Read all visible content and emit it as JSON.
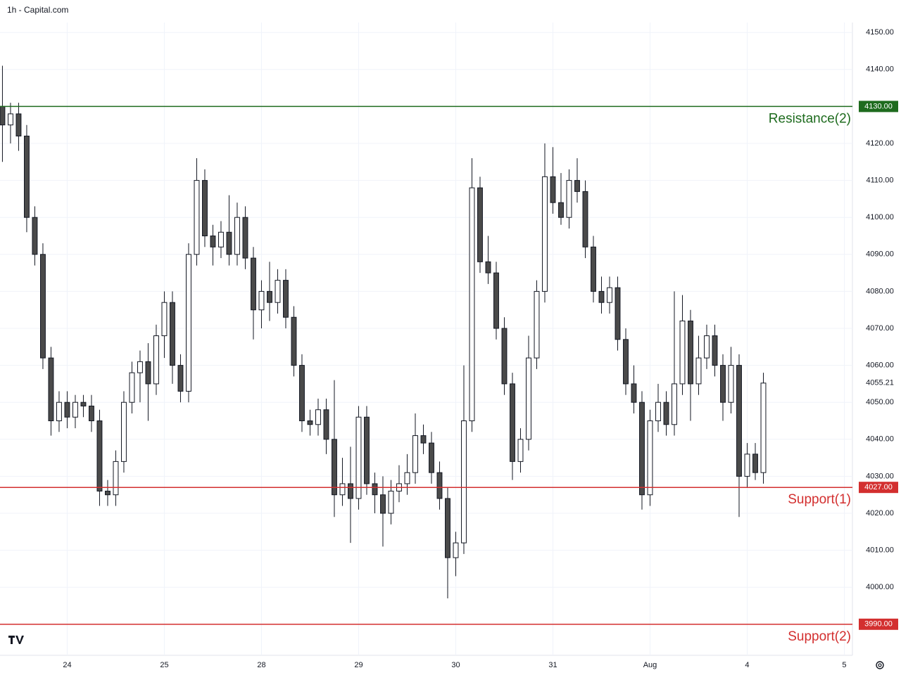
{
  "chart_data": {
    "type": "candlestick",
    "title": "1h - Capital.com",
    "open": [
      4130,
      4125,
      4128,
      4122,
      4100,
      4090,
      4062,
      4045,
      4050,
      4046,
      4050,
      4049,
      4045,
      4026,
      4025,
      4034,
      4050,
      4058,
      4061,
      4055,
      4068,
      4077,
      4060,
      4053,
      4090,
      4110,
      4095,
      4092,
      4096,
      4090,
      4100,
      4089,
      4075,
      4080,
      4077,
      4083,
      4073,
      4060,
      4045,
      4044,
      4048,
      4040,
      4025,
      4028,
      4024,
      4046,
      4028,
      4025,
      4020,
      4026,
      4028,
      4031,
      4041,
      4039,
      4031,
      4024,
      4008,
      4012,
      4045,
      4108,
      4088,
      4085,
      4070,
      4055,
      4034,
      4040,
      4062,
      4080,
      4111,
      4104,
      4100,
      4110,
      4107,
      4092,
      4080,
      4077,
      4081,
      4067,
      4055,
      4050,
      4025,
      4045,
      4050,
      4044,
      4055,
      4072,
      4055,
      4062,
      4068,
      4060,
      4050,
      4060,
      4030,
      4036,
      4031
    ],
    "high": [
      4141,
      4131,
      4131,
      4125,
      4103,
      4093,
      4065,
      4053,
      4053,
      4052,
      4052,
      4052,
      4048,
      4029,
      4037,
      4053,
      4061,
      4064,
      4066,
      4071,
      4080,
      4080,
      4063,
      4093,
      4116,
      4113,
      4098,
      4099,
      4106,
      4104,
      4103,
      4092,
      4083,
      4088,
      4086,
      4086,
      4076,
      4063,
      4048,
      4051,
      4051,
      4056,
      4035,
      4038,
      4049,
      4049,
      4031,
      4030,
      4029,
      4033,
      4036,
      4047,
      4044,
      4042,
      4034,
      4027,
      4015,
      4060,
      4116,
      4111,
      4095,
      4088,
      4073,
      4058,
      4043,
      4068,
      4083,
      4120,
      4119,
      4112,
      4113,
      4116,
      4110,
      4095,
      4084,
      4084,
      4084,
      4070,
      4060,
      4053,
      4048,
      4055,
      4053,
      4080,
      4079,
      4075,
      4068,
      4071,
      4071,
      4063,
      4065,
      4063,
      4039,
      4039,
      4058
    ],
    "low": [
      4115,
      4120,
      4118,
      4096,
      4087,
      4059,
      4041,
      4042,
      4043,
      4043,
      4046,
      4042,
      4022,
      4022,
      4022,
      4031,
      4047,
      4050,
      4045,
      4052,
      4062,
      4055,
      4050,
      4050,
      4087,
      4092,
      4087,
      4089,
      4087,
      4087,
      4086,
      4067,
      4070,
      4072,
      4074,
      4070,
      4057,
      4042,
      4041,
      4041,
      4036,
      4019,
      4022,
      4012,
      4021,
      4025,
      4020,
      4011,
      4017,
      4023,
      4025,
      4028,
      4036,
      4028,
      4021,
      3997,
      4003,
      4009,
      4042,
      4085,
      4082,
      4067,
      4052,
      4029,
      4031,
      4037,
      4059,
      4077,
      4101,
      4098,
      4097,
      4104,
      4089,
      4077,
      4074,
      4074,
      4064,
      4052,
      4047,
      4021,
      4022,
      4042,
      4041,
      4041,
      4052,
      4045,
      4052,
      4059,
      4057,
      4045,
      4047,
      4019,
      4027,
      4029,
      4028
    ],
    "close": [
      4125,
      4128,
      4122,
      4100,
      4090,
      4062,
      4045,
      4050,
      4046,
      4050,
      4049,
      4045,
      4026,
      4025,
      4034,
      4050,
      4058,
      4061,
      4055,
      4068,
      4077,
      4060,
      4053,
      4090,
      4110,
      4095,
      4092,
      4096,
      4090,
      4100,
      4089,
      4075,
      4080,
      4077,
      4083,
      4073,
      4060,
      4045,
      4044,
      4048,
      4040,
      4025,
      4028,
      4024,
      4046,
      4028,
      4025,
      4020,
      4026,
      4028,
      4031,
      4041,
      4039,
      4031,
      4024,
      4008,
      4012,
      4045,
      4108,
      4088,
      4085,
      4070,
      4055,
      4034,
      4040,
      4062,
      4080,
      4111,
      4104,
      4100,
      4110,
      4107,
      4092,
      4080,
      4077,
      4081,
      4067,
      4055,
      4050,
      4025,
      4045,
      4050,
      4044,
      4055,
      4072,
      4055,
      4062,
      4068,
      4060,
      4050,
      4060,
      4030,
      4036,
      4031,
      4055.21
    ],
    "last_price": 4055.21,
    "xlim": [
      -0.3,
      105
    ],
    "xticks": [
      {
        "value": 8,
        "label": "24"
      },
      {
        "value": 20,
        "label": "25"
      },
      {
        "value": 32,
        "label": "28"
      },
      {
        "value": 44,
        "label": "29"
      },
      {
        "value": 56,
        "label": "30"
      },
      {
        "value": 68,
        "label": "31"
      },
      {
        "value": 80,
        "label": "Aug"
      },
      {
        "value": 92,
        "label": "4"
      },
      {
        "value": 104,
        "label": "5"
      }
    ],
    "ylim": [
      3981.6,
      4152.7
    ],
    "yticks": [
      {
        "value": 4000,
        "label": "4000.00"
      },
      {
        "value": 4010,
        "label": "4010.00"
      },
      {
        "value": 4020,
        "label": "4020.00"
      },
      {
        "value": 4030,
        "label": "4030.00"
      },
      {
        "value": 4040,
        "label": "4040.00"
      },
      {
        "value": 4050,
        "label": "4050.00"
      },
      {
        "value": 4060,
        "label": "4060.00"
      },
      {
        "value": 4070,
        "label": "4070.00"
      },
      {
        "value": 4080,
        "label": "4080.00"
      },
      {
        "value": 4090,
        "label": "4090.00"
      },
      {
        "value": 4100,
        "label": "4100.00"
      },
      {
        "value": 4110,
        "label": "4110.00"
      },
      {
        "value": 4120,
        "label": "4120.00"
      },
      {
        "value": 4130,
        "label": "4130.00"
      },
      {
        "value": 4140,
        "label": "4140.00"
      },
      {
        "value": 4150,
        "label": "4150.00"
      }
    ],
    "grid": true,
    "up_color": "#ffffff",
    "down_color": "#4a4a4a",
    "levels": [
      {
        "name": "Resistance(2)",
        "value": {
          "value": 4130,
          "label": "4130.00"
        },
        "color": "#1e6b1e"
      },
      {
        "name": "Support(1)",
        "value": {
          "value": 4027,
          "label": "4027.00"
        },
        "color": "#d32f2f"
      },
      {
        "name": "Support(2)",
        "value": {
          "value": 3990,
          "label": "3990.00"
        },
        "color": "#d32f2f"
      }
    ]
  }
}
